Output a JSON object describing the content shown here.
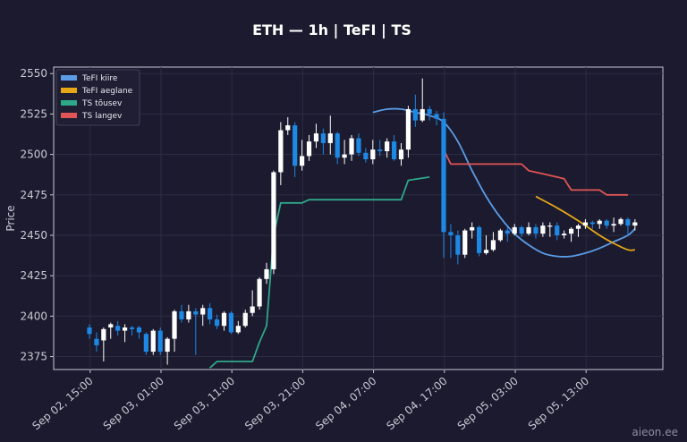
{
  "chart_data": {
    "type": "candlestick",
    "title": "ETH — 1h  |  TeFI  |  TS",
    "ylabel": "Price",
    "ylim": [
      2367,
      2554
    ],
    "yticks": [
      2375,
      2400,
      2425,
      2450,
      2475,
      2500,
      2525,
      2550
    ],
    "xticks": [
      "Sep 02, 15:00",
      "Sep 03, 01:00",
      "Sep 03, 11:00",
      "Sep 03, 21:00",
      "Sep 04, 07:00",
      "Sep 04, 17:00",
      "Sep 05, 03:00",
      "Sep 05, 13:00"
    ],
    "grid": true,
    "legend_position": "top-left",
    "watermark": "aieon.ee",
    "colors": {
      "background": "#1b1a2e",
      "grid": "#2c2d45",
      "axes": "#c9cad6",
      "candle_up": "#ffffff",
      "candle_down": "#1e88e5",
      "tefi_fast": "#5b9ce6",
      "tefi_slow": "#e6a817",
      "ts_up": "#2fa88a",
      "ts_down": "#e05555"
    },
    "series": [
      {
        "name": "TeFI kiire",
        "color": "#5b9ce6"
      },
      {
        "name": "TeFI aeglane",
        "color": "#e6a817"
      },
      {
        "name": "TS tõusev",
        "color": "#2fa88a"
      },
      {
        "name": "TS langev",
        "color": "#e05555"
      }
    ],
    "candles": [
      [
        2393,
        2389,
        2395,
        2386
      ],
      [
        2386,
        2382,
        2390,
        2378
      ],
      [
        2385,
        2392,
        2393,
        2372
      ],
      [
        2393,
        2395,
        2396,
        2386
      ],
      [
        2394,
        2391,
        2397,
        2388
      ],
      [
        2391,
        2393,
        2395,
        2384
      ],
      [
        2393,
        2392,
        2394,
        2388
      ],
      [
        2393,
        2390,
        2394,
        2386
      ],
      [
        2389,
        2378,
        2390,
        2376
      ],
      [
        2378,
        2391,
        2392,
        2376
      ],
      [
        2391,
        2378,
        2393,
        2376
      ],
      [
        2378,
        2386,
        2387,
        2370
      ],
      [
        2386,
        2403,
        2404,
        2378
      ],
      [
        2403,
        2398,
        2407,
        2396
      ],
      [
        2398,
        2403,
        2407,
        2396
      ],
      [
        2403,
        2401,
        2405,
        2376
      ],
      [
        2401,
        2405,
        2407,
        2394
      ],
      [
        2405,
        2398,
        2408,
        2395
      ],
      [
        2398,
        2394,
        2401,
        2392
      ],
      [
        2394,
        2402,
        2403,
        2391
      ],
      [
        2402,
        2390,
        2403,
        2389
      ],
      [
        2390,
        2394,
        2397,
        2389
      ],
      [
        2394,
        2402,
        2404,
        2393
      ],
      [
        2402,
        2406,
        2416,
        2400
      ],
      [
        2406,
        2423,
        2424,
        2404
      ],
      [
        2423,
        2429,
        2433,
        2420
      ],
      [
        2429,
        2489,
        2490,
        2426
      ],
      [
        2489,
        2515,
        2520,
        2481
      ],
      [
        2515,
        2518,
        2523,
        2512
      ],
      [
        2518,
        2493,
        2520,
        2486
      ],
      [
        2493,
        2499,
        2509,
        2490
      ],
      [
        2499,
        2508,
        2512,
        2496
      ],
      [
        2508,
        2513,
        2519,
        2504
      ],
      [
        2513,
        2507,
        2516,
        2500
      ],
      [
        2507,
        2513,
        2524,
        2500
      ],
      [
        2513,
        2498,
        2514,
        2494
      ],
      [
        2498,
        2500,
        2509,
        2494
      ],
      [
        2500,
        2510,
        2512,
        2496
      ],
      [
        2510,
        2501,
        2513,
        2499
      ],
      [
        2501,
        2497,
        2504,
        2495
      ],
      [
        2497,
        2503,
        2509,
        2494
      ],
      [
        2503,
        2502,
        2509,
        2499
      ],
      [
        2502,
        2508,
        2510,
        2498
      ],
      [
        2508,
        2497,
        2512,
        2496
      ],
      [
        2497,
        2503,
        2507,
        2493
      ],
      [
        2503,
        2528,
        2530,
        2498
      ],
      [
        2528,
        2521,
        2537,
        2517
      ],
      [
        2521,
        2528,
        2547,
        2520
      ],
      [
        2528,
        2525,
        2530,
        2521
      ],
      [
        2525,
        2522,
        2527,
        2518
      ],
      [
        2522,
        2452,
        2526,
        2436
      ],
      [
        2452,
        2450,
        2457,
        2436
      ],
      [
        2450,
        2438,
        2453,
        2432
      ],
      [
        2438,
        2453,
        2454,
        2436
      ],
      [
        2453,
        2455,
        2458,
        2448
      ],
      [
        2455,
        2439,
        2456,
        2437
      ],
      [
        2439,
        2441,
        2450,
        2438
      ],
      [
        2441,
        2447,
        2452,
        2440
      ],
      [
        2447,
        2453,
        2454,
        2446
      ],
      [
        2453,
        2451,
        2455,
        2446
      ],
      [
        2451,
        2455,
        2457,
        2450
      ],
      [
        2455,
        2451,
        2456,
        2449
      ],
      [
        2451,
        2455,
        2458,
        2450
      ],
      [
        2455,
        2451,
        2457,
        2448
      ],
      [
        2451,
        2456,
        2458,
        2449
      ],
      [
        2456,
        2456,
        2458,
        2449
      ],
      [
        2456,
        2450,
        2458,
        2447
      ],
      [
        2450,
        2451,
        2453,
        2448
      ],
      [
        2451,
        2454,
        2455,
        2446
      ],
      [
        2454,
        2456,
        2457,
        2449
      ],
      [
        2456,
        2458,
        2460,
        2454
      ],
      [
        2458,
        2457,
        2459,
        2454
      ],
      [
        2457,
        2459,
        2460,
        2454
      ],
      [
        2459,
        2456,
        2460,
        2454
      ],
      [
        2456,
        2457,
        2461,
        2452
      ],
      [
        2457,
        2460,
        2461,
        2456
      ],
      [
        2460,
        2456,
        2461,
        2450
      ],
      [
        2456,
        2458,
        2460,
        2453
      ]
    ],
    "lines": {
      "tefi_fast": [
        [
          40,
          2526
        ],
        [
          42,
          2528
        ],
        [
          44,
          2528
        ],
        [
          46,
          2526
        ],
        [
          48,
          2524
        ],
        [
          50,
          2520
        ],
        [
          52,
          2508
        ],
        [
          54,
          2490
        ],
        [
          56,
          2474
        ],
        [
          58,
          2461
        ],
        [
          60,
          2451
        ],
        [
          62,
          2444
        ],
        [
          64,
          2439
        ],
        [
          66,
          2437
        ],
        [
          68,
          2437
        ],
        [
          70,
          2439
        ],
        [
          72,
          2442
        ],
        [
          74,
          2446
        ],
        [
          76,
          2450
        ],
        [
          77,
          2454
        ]
      ],
      "tefi_slow": [
        [
          63,
          2474
        ],
        [
          66,
          2467
        ],
        [
          69,
          2459
        ],
        [
          72,
          2450
        ],
        [
          74,
          2445
        ],
        [
          76,
          2441
        ],
        [
          77,
          2441
        ]
      ],
      "ts_up": [
        [
          17,
          2368
        ],
        [
          18,
          2372
        ],
        [
          22,
          2372
        ],
        [
          23,
          2372
        ],
        [
          24,
          2384
        ],
        [
          25,
          2394
        ],
        [
          26,
          2450
        ],
        [
          27,
          2470
        ],
        [
          30,
          2470
        ],
        [
          31,
          2472
        ],
        [
          44,
          2472
        ],
        [
          45,
          2484
        ],
        [
          48,
          2486
        ]
      ],
      "ts_down": [
        [
          50,
          2503
        ],
        [
          51,
          2494
        ],
        [
          61,
          2494
        ],
        [
          62,
          2490
        ],
        [
          64,
          2488
        ],
        [
          66,
          2486
        ],
        [
          67,
          2485
        ],
        [
          68,
          2478
        ],
        [
          72,
          2478
        ],
        [
          73,
          2475
        ],
        [
          76,
          2475
        ]
      ]
    }
  }
}
